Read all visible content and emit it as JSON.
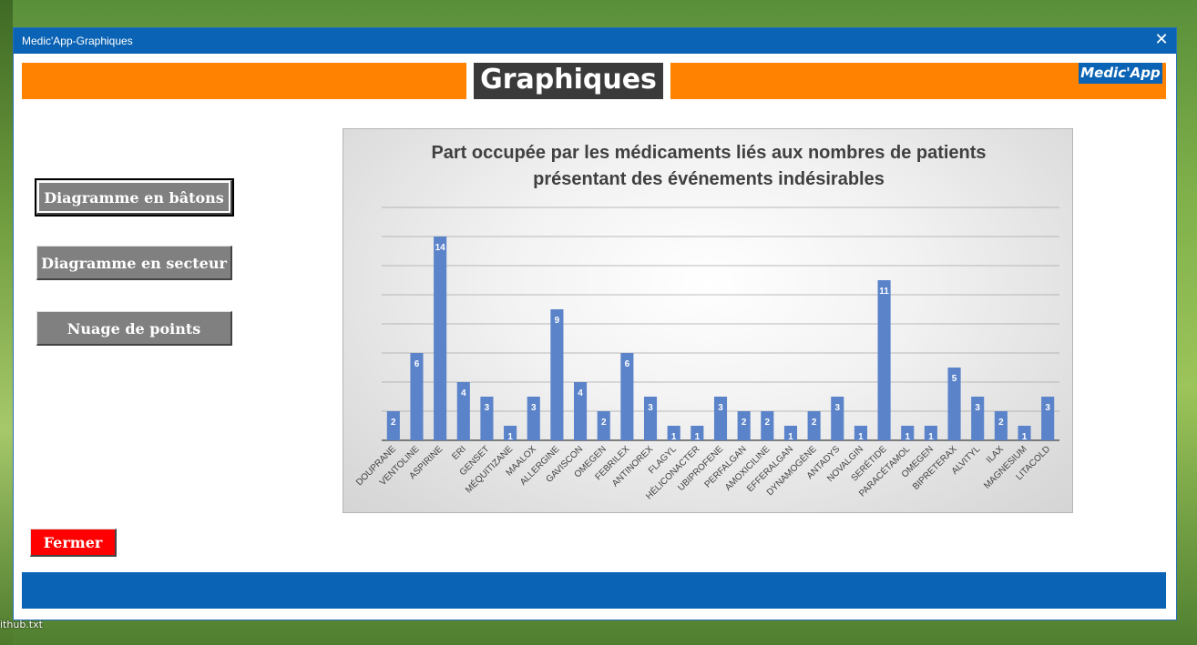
{
  "desktop": {
    "file_label": "ithub.txt"
  },
  "window": {
    "title": "Medic'App-Graphiques"
  },
  "header": {
    "title": "Graphiques",
    "brand": "Medic'App"
  },
  "buttons": {
    "bar_chart": "Diagramme en bâtons",
    "pie_chart": "Diagramme en secteur",
    "scatter": "Nuage de points",
    "close": "Fermer"
  },
  "colors": {
    "title_bar": "#0a63b4",
    "header_orange": "#ff8200",
    "bar_fill": "#5b83c9",
    "close_button": "#ff0000",
    "button_gray": "#808080"
  },
  "chart_data": {
    "type": "bar",
    "title": "Part  occupée par les médicaments liés aux nombres de patients présentant des événements indésirables",
    "xlabel": "",
    "ylabel": "",
    "ylim": [
      0,
      16
    ],
    "grid": true,
    "show_data_labels": true,
    "categories": [
      "DOUPRANE",
      "VENTOLINE",
      "ASPIRINE",
      "ERI",
      "GENSET",
      "MÉQUITIZANE",
      "MAALOX",
      "ALLERGINE",
      "GAVISCON",
      "OMEGEN",
      "FEBRILEX",
      "ANTINOREX",
      "FLAGYL",
      "HÉLICONACTER",
      "UBIPROFENE",
      "PERFALGAN",
      "AMOXICILINE",
      "EFFERALGAN",
      "DYNAMOGÈNE",
      "ANTADYS",
      "NOVALGIN",
      "SERÉTIDE",
      "PARACÉTAMOL",
      "OMEGEN",
      "BIPRETERAX",
      "ALVITYL",
      "ILAX",
      "MAGNESIUM",
      "LITACOLD"
    ],
    "values": [
      2,
      6,
      14,
      4,
      3,
      1,
      3,
      9,
      4,
      2,
      6,
      3,
      1,
      1,
      3,
      2,
      2,
      1,
      2,
      3,
      1,
      11,
      1,
      1,
      5,
      3,
      2,
      1,
      3
    ]
  }
}
